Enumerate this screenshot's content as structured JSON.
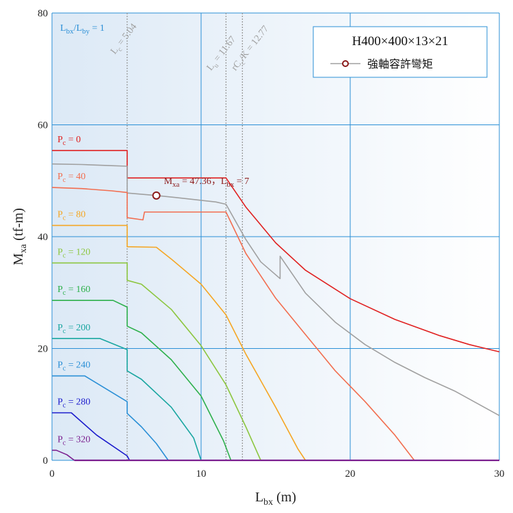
{
  "chart_data": {
    "type": "line",
    "title": "H400×400×13×21",
    "xlabel_main": "L",
    "xlabel_sub": "bx",
    "xlabel_unit": " (m)",
    "ylabel_main": "M",
    "ylabel_sub": "xa",
    "ylabel_unit": " (tf-m)",
    "xlim": [
      0,
      30
    ],
    "ylim": [
      0,
      80
    ],
    "xticks": [
      0,
      10,
      20,
      30
    ],
    "yticks": [
      0,
      20,
      40,
      60,
      80
    ],
    "grid": true,
    "legend_position": "top-right",
    "legend_label": "強軸容許彎矩",
    "ratio_label": {
      "a": "L",
      "a_sub": "bx",
      "slash": "/L",
      "b_sub": "by",
      "rest": " = 1",
      "color": "#2a8fd6"
    },
    "vlines": [
      {
        "x": 5.04,
        "label": "L",
        "label_sub": "c",
        "label_rest": " = 5.04"
      },
      {
        "x": 11.67,
        "label": "L",
        "label_sub": "u",
        "label_rest": " = 11.67"
      },
      {
        "x": 12.77,
        "label": "rC",
        "label_sub": "c",
        "label_rest": "/K = 12.77"
      }
    ],
    "marker": {
      "x": 7,
      "y": 47.36,
      "label_a": "M",
      "label_sub": "xa",
      "label_rest": " = 47.36，L",
      "label_sub2": "bx",
      "label_rest2": " = 7",
      "color": "#8b1a1a"
    },
    "series": [
      {
        "name": "",
        "label_main": "P",
        "label_sub": "c",
        "label_rest": " = 0",
        "color": "#e02020",
        "points": [
          [
            0,
            55.4
          ],
          [
            5.04,
            55.4
          ],
          [
            5.04,
            50.5
          ],
          [
            11.67,
            50.5
          ],
          [
            13,
            45.3
          ],
          [
            15,
            38.9
          ],
          [
            17,
            34.0
          ],
          [
            20,
            28.9
          ],
          [
            23,
            25.2
          ],
          [
            26,
            22.3
          ],
          [
            28,
            20.7
          ],
          [
            30,
            19.4
          ]
        ]
      },
      {
        "name": "",
        "label_main": "",
        "label_sub": "",
        "label_rest": "",
        "color": "#a0a0a0",
        "points": [
          [
            0,
            53.0
          ],
          [
            2,
            52.9
          ],
          [
            4,
            52.7
          ],
          [
            5.04,
            52.6
          ],
          [
            5.04,
            47.8
          ],
          [
            7,
            47.36
          ],
          [
            9,
            46.8
          ],
          [
            11,
            46.2
          ],
          [
            11.67,
            45.8
          ],
          [
            13,
            39.5
          ],
          [
            14,
            35.5
          ],
          [
            15.3,
            32.5
          ],
          [
            15.3,
            36.5
          ],
          [
            17,
            29.9
          ],
          [
            19,
            24.7
          ],
          [
            21,
            20.7
          ],
          [
            23,
            17.5
          ],
          [
            25,
            14.8
          ],
          [
            27,
            12.4
          ],
          [
            30,
            8.0
          ]
        ]
      },
      {
        "name": "",
        "label_main": "P",
        "label_sub": "c",
        "label_rest": " = 40",
        "color": "#f26d4f",
        "points": [
          [
            0,
            48.8
          ],
          [
            2,
            48.6
          ],
          [
            4,
            48.2
          ],
          [
            5.04,
            47.9
          ],
          [
            5.04,
            43.4
          ],
          [
            6.1,
            43.0
          ],
          [
            6.2,
            44.4
          ],
          [
            11.67,
            44.4
          ],
          [
            13,
            37.0
          ],
          [
            15,
            29.0
          ],
          [
            17,
            22.5
          ],
          [
            19,
            16.0
          ],
          [
            21,
            10.5
          ],
          [
            23,
            4.5
          ],
          [
            24.3,
            0
          ]
        ]
      },
      {
        "name": "",
        "label_main": "P",
        "label_sub": "c",
        "label_rest": " = 80",
        "color": "#f5a623",
        "points": [
          [
            0,
            42.0
          ],
          [
            5.04,
            42.0
          ],
          [
            5.04,
            38.2
          ],
          [
            7,
            38.1
          ],
          [
            8,
            36.0
          ],
          [
            10,
            31.5
          ],
          [
            11.67,
            26.0
          ],
          [
            13,
            19.0
          ],
          [
            15,
            9.5
          ],
          [
            16.5,
            2.0
          ],
          [
            17,
            0
          ]
        ]
      },
      {
        "name": "",
        "label_main": "P",
        "label_sub": "c",
        "label_rest": " = 120",
        "color": "#8cc63f",
        "points": [
          [
            0,
            35.3
          ],
          [
            5.04,
            35.3
          ],
          [
            5.04,
            32.2
          ],
          [
            6,
            31.5
          ],
          [
            8,
            27.0
          ],
          [
            10,
            20.5
          ],
          [
            11.67,
            13.5
          ],
          [
            13,
            6.0
          ],
          [
            14,
            0
          ]
        ]
      },
      {
        "name": "",
        "label_main": "P",
        "label_sub": "c",
        "label_rest": " = 160",
        "color": "#2db04b",
        "points": [
          [
            0,
            28.6
          ],
          [
            4.1,
            28.6
          ],
          [
            5.04,
            27.4
          ],
          [
            5.04,
            24.0
          ],
          [
            6,
            22.8
          ],
          [
            8,
            18.0
          ],
          [
            10,
            11.5
          ],
          [
            11.5,
            3.5
          ],
          [
            12,
            0
          ]
        ]
      },
      {
        "name": "",
        "label_main": "P",
        "label_sub": "c",
        "label_rest": " = 200",
        "color": "#19a6a0",
        "points": [
          [
            0,
            21.8
          ],
          [
            3.2,
            21.8
          ],
          [
            5.04,
            19.8
          ],
          [
            5.04,
            16.0
          ],
          [
            6,
            14.5
          ],
          [
            8,
            9.5
          ],
          [
            9.5,
            4.0
          ],
          [
            10,
            0
          ]
        ]
      },
      {
        "name": "",
        "label_main": "P",
        "label_sub": "c",
        "label_rest": " = 240",
        "color": "#2a8fd6",
        "points": [
          [
            0,
            15.1
          ],
          [
            2.2,
            15.1
          ],
          [
            5.04,
            10.5
          ],
          [
            5.04,
            8.4
          ],
          [
            6,
            6.0
          ],
          [
            7,
            3.0
          ],
          [
            7.8,
            0
          ]
        ]
      },
      {
        "name": "",
        "label_main": "P",
        "label_sub": "c",
        "label_rest": " = 280",
        "color": "#1a1acc",
        "points": [
          [
            0,
            8.5
          ],
          [
            1.3,
            8.5
          ],
          [
            3,
            4.5
          ],
          [
            5.04,
            0.8
          ],
          [
            5.2,
            0
          ]
        ]
      },
      {
        "name": "",
        "label_main": "P",
        "label_sub": "c",
        "label_rest": " = 320",
        "color": "#7b1f8f",
        "points": [
          [
            0,
            1.8
          ],
          [
            0.3,
            1.8
          ],
          [
            1,
            1.0
          ],
          [
            1.5,
            0
          ]
        ]
      }
    ],
    "colors": {
      "grid": "#2a8fd6",
      "vline": "#999999",
      "bg_left": "#dce9f6",
      "legend_border": "#2a8fd6"
    }
  }
}
